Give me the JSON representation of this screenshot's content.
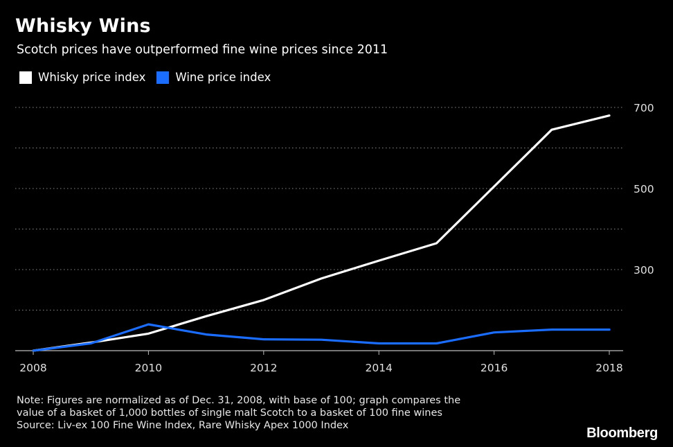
{
  "header": {
    "title": "Whisky Wins",
    "subtitle": "Scotch prices have outperformed fine wine prices since 2011"
  },
  "legend": [
    {
      "label": "Whisky price index",
      "color": "#ffffff"
    },
    {
      "label": "Wine price index",
      "color": "#1a6dff"
    }
  ],
  "notes": {
    "line1": "Note: Figures are normalized as of Dec. 31, 2008, with base of 100; graph compares the",
    "line2": "value of a basket of 1,000 bottles of single malt Scotch to a basket of 100 fine wines",
    "line3": "Source: Liv-ex 100 Fine Wine Index, Rare Whisky Apex 1000 Index"
  },
  "brand": "Bloomberg",
  "chart_data": {
    "type": "line",
    "title": "Whisky Wins",
    "subtitle": "Scotch prices have outperformed fine wine prices since 2011",
    "xlabel": "",
    "ylabel": "",
    "x": [
      2008,
      2009,
      2010,
      2011,
      2012,
      2013,
      2014,
      2015,
      2016,
      2017,
      2018
    ],
    "x_ticks": [
      2008,
      2010,
      2012,
      2014,
      2016,
      2018
    ],
    "y_ticks": [
      300,
      500,
      700
    ],
    "ylim": [
      100,
      700
    ],
    "xlim": [
      2008,
      2018
    ],
    "y_axis_side": "right",
    "grid": "horizontal dotted",
    "legend_position": "top-left",
    "series": [
      {
        "name": "Whisky price index",
        "color": "#ffffff",
        "values": [
          100,
          120,
          142,
          185,
          225,
          278,
          322,
          365,
          505,
          645,
          680
        ]
      },
      {
        "name": "Wine price index",
        "color": "#1a6dff",
        "values": [
          100,
          118,
          165,
          140,
          128,
          127,
          118,
          118,
          145,
          152,
          152
        ]
      }
    ]
  }
}
